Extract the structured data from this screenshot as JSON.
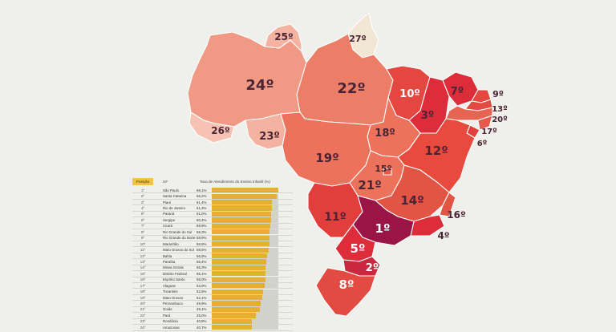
{
  "map": {
    "colors": {
      "r1": "#9a1446",
      "r2": "#c9283f",
      "r3": "#dd2d3a",
      "r4": "#e23e3b",
      "r5": "#e4473f",
      "r6": "#e84a3d",
      "r7": "#e24a42",
      "r8": "#e25544",
      "r9": "#e55a4b",
      "r10": "#e86452",
      "r11": "#ec725c",
      "r12": "#ec7d66",
      "r13": "#f09a85",
      "r14": "#f4b3a1",
      "r15": "#f6c2b4",
      "r16": "#f7cfc2",
      "r17": "#f2e6d4"
    },
    "labels": {
      "roraima": "25º",
      "amapa": "27º",
      "amazonas": "24º",
      "para": "22º",
      "maranhao": "10º",
      "ceara": "7º",
      "rio_grande_do_norte": "9º",
      "paraiba": "13º",
      "pernambuco": "20º",
      "alagoas": "17º",
      "sergipe": "6º",
      "piaui": "3º",
      "tocantins": "18º",
      "bahia": "12º",
      "acre": "26º",
      "rondonia": "23º",
      "mato_grosso": "19º",
      "distrito_federal": "15º",
      "goias": "21º",
      "minas_gerais": "14º",
      "mato_grosso_do_sul": "11º",
      "espirito_santo": "16º",
      "rio_de_janeiro": "4º",
      "sao_paulo": "1º",
      "parana": "5º",
      "santa_catarina": "2º",
      "rio_grande_do_sul": "8º"
    }
  },
  "table": {
    "headers": {
      "position": "Posição",
      "uf": "UF",
      "rate": "Taxa de Atendimento do Ensino Infantil (%)"
    },
    "rows": [
      {
        "pos": "1º",
        "uf": "São Paulo",
        "val": "68,1%",
        "num": 68.1
      },
      {
        "pos": "2º",
        "uf": "Santa Catarina",
        "val": "66,2%",
        "num": 66.2
      },
      {
        "pos": "3º",
        "uf": "Piauí",
        "val": "61,4%",
        "num": 61.4
      },
      {
        "pos": "4º",
        "uf": "Rio de Janeiro",
        "val": "61,3%",
        "num": 61.3
      },
      {
        "pos": "5º",
        "uf": "Paraná",
        "val": "61,0%",
        "num": 61.0
      },
      {
        "pos": "6º",
        "uf": "Sergipe",
        "val": "60,4%",
        "num": 60.4
      },
      {
        "pos": "7º",
        "uf": "Ceará",
        "val": "59,9%",
        "num": 59.9
      },
      {
        "pos": "8º",
        "uf": "Rio Grande do Sul",
        "val": "59,3%",
        "num": 59.3
      },
      {
        "pos": "9º",
        "uf": "Rio Grande do Norte",
        "val": "58,9%",
        "num": 58.9
      },
      {
        "pos": "10º",
        "uf": "Maranhão",
        "val": "58,8%",
        "num": 58.8
      },
      {
        "pos": "11º",
        "uf": "Mato Grosso do Sul",
        "val": "58,5%",
        "num": 58.5
      },
      {
        "pos": "12º",
        "uf": "Bahia",
        "val": "56,9%",
        "num": 56.9
      },
      {
        "pos": "13º",
        "uf": "Paraíba",
        "val": "55,4%",
        "num": 55.4
      },
      {
        "pos": "14º",
        "uf": "Minas Gerais",
        "val": "55,3%",
        "num": 55.3
      },
      {
        "pos": "15º",
        "uf": "Distrito Federal",
        "val": "55,1%",
        "num": 55.1
      },
      {
        "pos": "16º",
        "uf": "Espírito Santo",
        "val": "55,0%",
        "num": 55.0
      },
      {
        "pos": "17º",
        "uf": "Alagoas",
        "val": "53,9%",
        "num": 53.9
      },
      {
        "pos": "18º",
        "uf": "Tocantins",
        "val": "52,5%",
        "num": 52.5
      },
      {
        "pos": "19º",
        "uf": "Mato Grosso",
        "val": "52,1%",
        "num": 52.1
      },
      {
        "pos": "20º",
        "uf": "Pernambuco",
        "val": "49,9%",
        "num": 49.9
      },
      {
        "pos": "21º",
        "uf": "Goiás",
        "val": "49,1%",
        "num": 49.1
      },
      {
        "pos": "22º",
        "uf": "Pará",
        "val": "45,0%",
        "num": 45.0
      },
      {
        "pos": "23º",
        "uf": "Rondônia",
        "val": "40,8%",
        "num": 40.8
      },
      {
        "pos": "24º",
        "uf": "Amazonas",
        "val": "40,7%",
        "num": 40.7
      }
    ]
  }
}
